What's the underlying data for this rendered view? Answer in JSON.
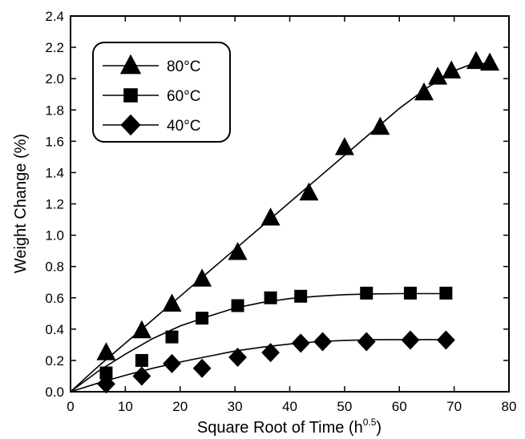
{
  "chart_data": {
    "type": "line",
    "xlabel": "Square Root of Time (h",
    "xlabel_sup": "0.5",
    "xlabel_close": ")",
    "ylabel": "Weight Change (%)",
    "xlim": [
      0,
      80
    ],
    "ylim": [
      0,
      2.4
    ],
    "xticks": [
      0,
      10,
      20,
      30,
      40,
      50,
      60,
      70,
      80
    ],
    "yticks": [
      0.0,
      0.2,
      0.4,
      0.6,
      0.8,
      1.0,
      1.2,
      1.4,
      1.6,
      1.8,
      2.0,
      2.2,
      2.4
    ],
    "grid": false,
    "legend_position": "top-left",
    "series": [
      {
        "name": "80°C",
        "marker": "triangle",
        "x": [
          6.5,
          13,
          18.5,
          24,
          30.5,
          36.5,
          43.5,
          50,
          56.5,
          64.5,
          67,
          69.5,
          74,
          76.5
        ],
        "y": [
          0.25,
          0.39,
          0.56,
          0.72,
          0.89,
          1.11,
          1.27,
          1.56,
          1.69,
          1.91,
          2.01,
          2.05,
          2.11,
          2.1
        ],
        "fit_x": [
          0,
          5,
          10,
          15,
          20,
          25,
          30,
          35,
          40,
          45,
          50,
          55,
          60,
          65,
          70,
          73,
          76.5
        ],
        "fit_y": [
          0,
          0.16,
          0.31,
          0.46,
          0.61,
          0.76,
          0.91,
          1.06,
          1.21,
          1.36,
          1.51,
          1.66,
          1.81,
          1.94,
          2.05,
          2.09,
          2.1
        ]
      },
      {
        "name": "60°C",
        "marker": "square",
        "x": [
          6.5,
          13,
          18.5,
          24,
          30.5,
          36.5,
          42,
          54,
          62,
          68.5
        ],
        "y": [
          0.12,
          0.2,
          0.35,
          0.47,
          0.55,
          0.6,
          0.61,
          0.63,
          0.63,
          0.63
        ],
        "fit_x": [
          0,
          5,
          10,
          15,
          20,
          25,
          30,
          35,
          40,
          45,
          50,
          55,
          60,
          65,
          68.5
        ],
        "fit_y": [
          0,
          0.13,
          0.24,
          0.34,
          0.42,
          0.48,
          0.535,
          0.57,
          0.595,
          0.61,
          0.62,
          0.625,
          0.627,
          0.627,
          0.627
        ]
      },
      {
        "name": "40°C",
        "marker": "diamond",
        "x": [
          6.5,
          13,
          18.5,
          24,
          30.5,
          36.5,
          42,
          46,
          54,
          62,
          68.5
        ],
        "y": [
          0.05,
          0.1,
          0.18,
          0.15,
          0.22,
          0.25,
          0.31,
          0.32,
          0.32,
          0.33,
          0.33
        ],
        "fit_x": [
          0,
          5,
          10,
          15,
          20,
          25,
          30,
          35,
          40,
          45,
          50,
          55,
          60,
          65,
          68.5
        ],
        "fit_y": [
          0,
          0.055,
          0.105,
          0.15,
          0.19,
          0.225,
          0.26,
          0.285,
          0.305,
          0.32,
          0.328,
          0.332,
          0.333,
          0.333,
          0.333
        ]
      }
    ]
  }
}
